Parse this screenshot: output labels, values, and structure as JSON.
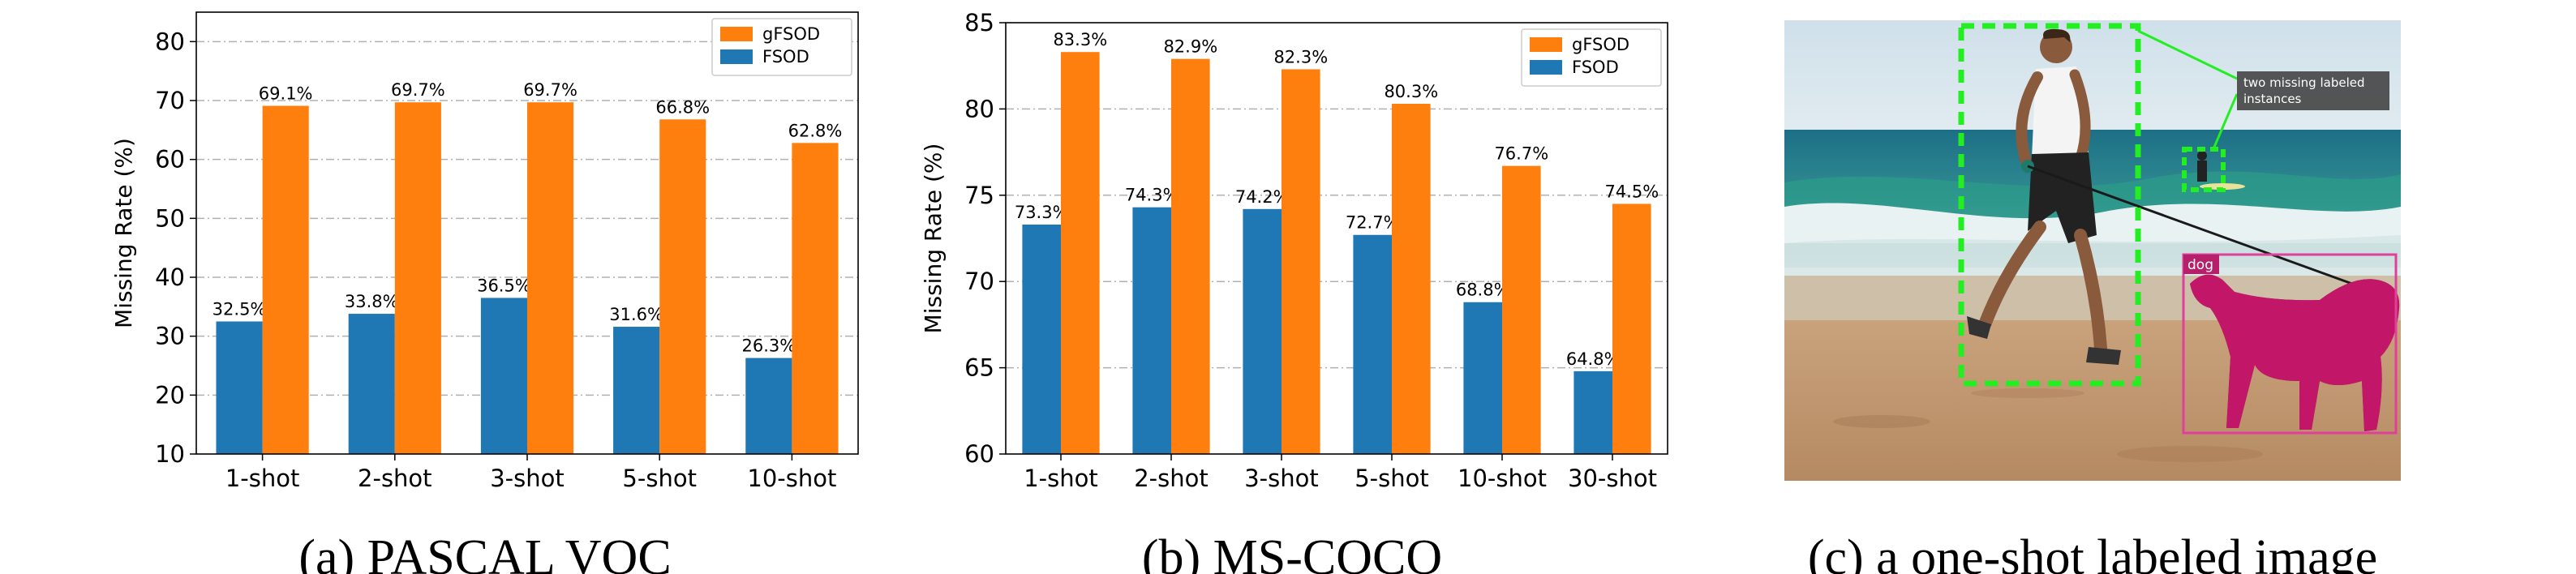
{
  "colors": {
    "gfsod": "#ff7f0e",
    "fsod": "#1f77b4",
    "grid": "#b0b0b0",
    "box": "#00ff00",
    "dog": "#d6127a"
  },
  "captions": {
    "a": "(a) PASCAL VOC",
    "b": "(b) MS-COCO",
    "c": "(c) a one-shot labeled image"
  },
  "chart_data": [
    {
      "type": "bar",
      "ylabel": "Missing Rate (%)",
      "xlabel": "",
      "ylim": [
        10,
        85
      ],
      "yticks": [
        10,
        20,
        30,
        40,
        50,
        60,
        70,
        80
      ],
      "grid": true,
      "legend_position": "top-right",
      "categories": [
        "1-shot",
        "2-shot",
        "3-shot",
        "5-shot",
        "10-shot"
      ],
      "series": [
        {
          "name": "FSOD",
          "values": [
            32.5,
            33.8,
            36.5,
            31.6,
            26.3
          ],
          "labels": [
            "32.5%",
            "33.8%",
            "36.5%",
            "31.6%",
            "26.3%"
          ]
        },
        {
          "name": "gFSOD",
          "values": [
            69.1,
            69.7,
            69.7,
            66.8,
            62.8
          ],
          "labels": [
            "69.1%",
            "69.7%",
            "69.7%",
            "66.8%",
            "62.8%"
          ]
        }
      ]
    },
    {
      "type": "bar",
      "ylabel": "Missing Rate (%)",
      "xlabel": "",
      "ylim": [
        60,
        85
      ],
      "yticks": [
        60,
        65,
        70,
        75,
        80,
        85
      ],
      "grid": true,
      "legend_position": "top-right",
      "categories": [
        "1-shot",
        "2-shot",
        "3-shot",
        "5-shot",
        "10-shot",
        "30-shot"
      ],
      "series": [
        {
          "name": "FSOD",
          "values": [
            73.3,
            74.3,
            74.2,
            72.7,
            68.8,
            64.8
          ],
          "labels": [
            "73.3%",
            "74.3%",
            "74.2%",
            "72.7%",
            "68.8%",
            "64.8%"
          ]
        },
        {
          "name": "gFSOD",
          "values": [
            83.3,
            82.9,
            82.3,
            80.3,
            76.7,
            74.5
          ],
          "labels": [
            "83.3%",
            "82.9%",
            "82.3%",
            "80.3%",
            "76.7%",
            "74.5%"
          ]
        }
      ]
    }
  ],
  "image_c": {
    "annotation": "two missing labeled\ninstances",
    "dog_label": "dog"
  }
}
